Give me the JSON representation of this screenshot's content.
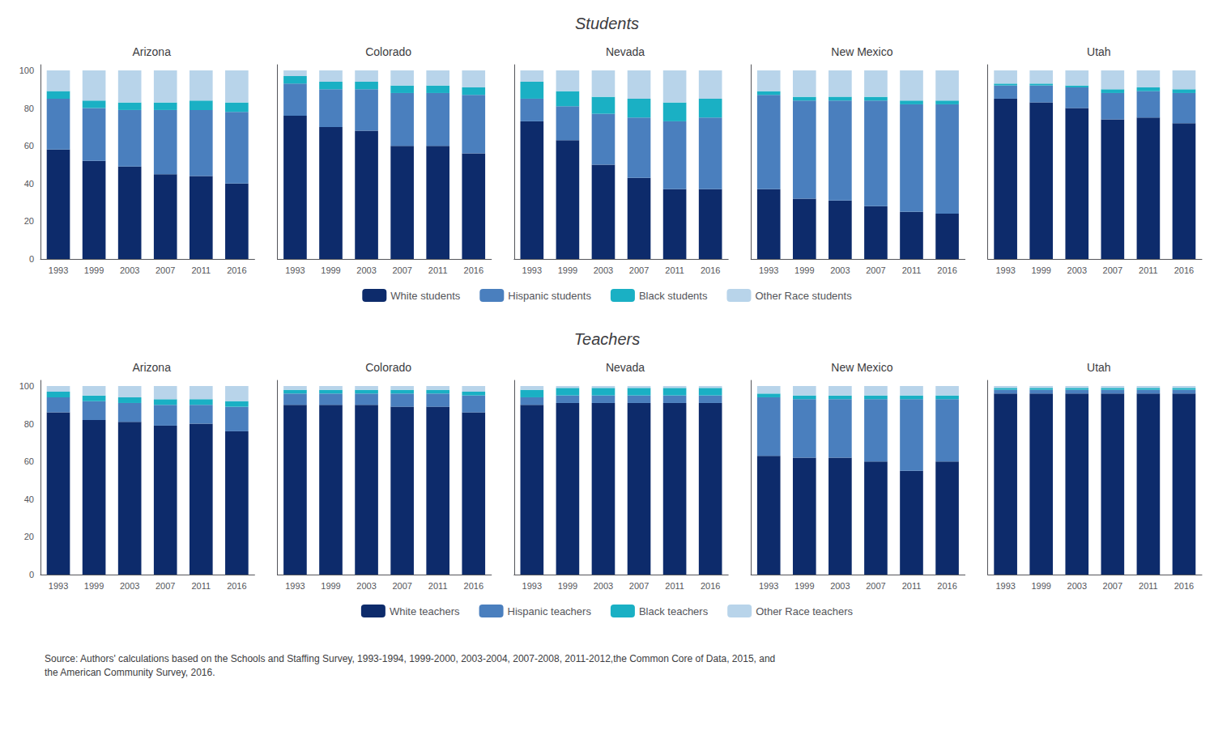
{
  "chart_data": [
    {
      "type": "bar",
      "title": "Arizona",
      "annotations": [
        "Students"
      ],
      "legend": "bottom",
      "stacked": true,
      "grid": false,
      "categories": [
        "1993",
        "1999",
        "2003",
        "2007",
        "2011",
        "2016"
      ],
      "ylim": [
        0,
        103
      ],
      "yticks": [
        0,
        20,
        40,
        60,
        80,
        100
      ],
      "series": [
        {
          "name": "White students",
          "color": "#0d2b6b",
          "values": [
            58,
            52,
            49,
            45,
            44,
            40
          ]
        },
        {
          "name": "Hispanic students",
          "color": "#4a7fbe",
          "values": [
            27,
            28,
            30,
            34,
            35,
            38
          ]
        },
        {
          "name": "Black students",
          "color": "#1ab0c4",
          "values": [
            4,
            4,
            4,
            4,
            5,
            5
          ]
        },
        {
          "name": "Other Race students",
          "color": "#b8d4ea",
          "values": [
            11,
            16,
            17,
            17,
            16,
            17
          ]
        }
      ]
    },
    {
      "type": "bar",
      "title": "Colorado",
      "stacked": true,
      "grid": false,
      "tick_labels": "x",
      "categories": [
        "1993",
        "1999",
        "2003",
        "2007",
        "2011",
        "2016"
      ],
      "ylim": [
        0,
        103
      ],
      "yticks": [
        0,
        20,
        40,
        60,
        80,
        100
      ],
      "series": [
        {
          "name": "White students",
          "color": "#0d2b6b",
          "values": [
            76,
            70,
            68,
            60,
            60,
            56
          ]
        },
        {
          "name": "Hispanic students",
          "color": "#4a7fbe",
          "values": [
            17,
            20,
            22,
            28,
            28,
            31
          ]
        },
        {
          "name": "Black students",
          "color": "#1ab0c4",
          "values": [
            4,
            4,
            4,
            4,
            4,
            4
          ]
        },
        {
          "name": "Other Race students",
          "color": "#b8d4ea",
          "values": [
            3,
            6,
            6,
            8,
            8,
            9
          ]
        }
      ]
    },
    {
      "type": "bar",
      "title": "Nevada",
      "stacked": true,
      "grid": false,
      "tick_labels": "x",
      "categories": [
        "1993",
        "1999",
        "2003",
        "2007",
        "2011",
        "2016"
      ],
      "ylim": [
        0,
        103
      ],
      "yticks": [
        0,
        20,
        40,
        60,
        80,
        100
      ],
      "series": [
        {
          "name": "White students",
          "color": "#0d2b6b",
          "values": [
            73,
            63,
            50,
            43,
            37,
            37
          ]
        },
        {
          "name": "Hispanic students",
          "color": "#4a7fbe",
          "values": [
            12,
            18,
            27,
            32,
            36,
            38
          ]
        },
        {
          "name": "Black students",
          "color": "#1ab0c4",
          "values": [
            9,
            8,
            9,
            10,
            10,
            10
          ]
        },
        {
          "name": "Other Race students",
          "color": "#b8d4ea",
          "values": [
            6,
            11,
            14,
            15,
            17,
            15
          ]
        }
      ]
    },
    {
      "type": "bar",
      "title": "New Mexico",
      "stacked": true,
      "grid": false,
      "tick_labels": "x",
      "categories": [
        "1993",
        "1999",
        "2003",
        "2007",
        "2011",
        "2016"
      ],
      "ylim": [
        0,
        103
      ],
      "yticks": [
        0,
        20,
        40,
        60,
        80,
        100
      ],
      "series": [
        {
          "name": "White students",
          "color": "#0d2b6b",
          "values": [
            37,
            32,
            31,
            28,
            25,
            24
          ]
        },
        {
          "name": "Hispanic students",
          "color": "#4a7fbe",
          "values": [
            50,
            52,
            53,
            56,
            57,
            58
          ]
        },
        {
          "name": "Black students",
          "color": "#1ab0c4",
          "values": [
            2,
            2,
            2,
            2,
            2,
            2
          ]
        },
        {
          "name": "Other Race students",
          "color": "#b8d4ea",
          "values": [
            11,
            14,
            14,
            14,
            16,
            16
          ]
        }
      ]
    },
    {
      "type": "bar",
      "title": "Utah",
      "stacked": true,
      "grid": false,
      "tick_labels": "x",
      "categories": [
        "1993",
        "1999",
        "2003",
        "2007",
        "2011",
        "2016"
      ],
      "ylim": [
        0,
        103
      ],
      "yticks": [
        0,
        20,
        40,
        60,
        80,
        100
      ],
      "series": [
        {
          "name": "White students",
          "color": "#0d2b6b",
          "values": [
            85,
            83,
            80,
            74,
            75,
            72
          ]
        },
        {
          "name": "Hispanic students",
          "color": "#4a7fbe",
          "values": [
            7,
            9,
            11,
            14,
            14,
            16
          ]
        },
        {
          "name": "Black students",
          "color": "#1ab0c4",
          "values": [
            1,
            1,
            1,
            2,
            2,
            2
          ]
        },
        {
          "name": "Other Race students",
          "color": "#b8d4ea",
          "values": [
            7,
            7,
            8,
            10,
            9,
            10
          ]
        }
      ]
    },
    {
      "type": "bar",
      "title": "Arizona",
      "annotations": [
        "Teachers",
        "Source: Authors' calculations based on the Schools and Staffing Survey, 1993-1994, 1999-2000, 2003-2004, 2007-2008, 2011-2012,the Common Core of Data, 2015, and\nthe American Community Survey, 2016."
      ],
      "legend": "bottom",
      "stacked": true,
      "grid": false,
      "categories": [
        "1993",
        "1999",
        "2003",
        "2007",
        "2011",
        "2016"
      ],
      "ylim": [
        0,
        103
      ],
      "yticks": [
        0,
        20,
        40,
        60,
        80,
        100
      ],
      "series": [
        {
          "name": "White teachers",
          "color": "#0d2b6b",
          "values": [
            86,
            82,
            81,
            79,
            80,
            76
          ]
        },
        {
          "name": "Hispanic teachers",
          "color": "#4a7fbe",
          "values": [
            8,
            10,
            10,
            11,
            10,
            13
          ]
        },
        {
          "name": "Black teachers",
          "color": "#1ab0c4",
          "values": [
            3,
            3,
            3,
            3,
            3,
            3
          ]
        },
        {
          "name": "Other Race teachers",
          "color": "#b8d4ea",
          "values": [
            3,
            5,
            6,
            7,
            7,
            8
          ]
        }
      ]
    },
    {
      "type": "bar",
      "title": "Colorado",
      "stacked": true,
      "grid": false,
      "tick_labels": "x",
      "categories": [
        "1993",
        "1999",
        "2003",
        "2007",
        "2011",
        "2016"
      ],
      "ylim": [
        0,
        103
      ],
      "yticks": [
        0,
        20,
        40,
        60,
        80,
        100
      ],
      "series": [
        {
          "name": "White teachers",
          "color": "#0d2b6b",
          "values": [
            90,
            90,
            90,
            89,
            89,
            86
          ]
        },
        {
          "name": "Hispanic teachers",
          "color": "#4a7fbe",
          "values": [
            6,
            6,
            6,
            7,
            7,
            9
          ]
        },
        {
          "name": "Black teachers",
          "color": "#1ab0c4",
          "values": [
            2,
            2,
            2,
            2,
            2,
            2
          ]
        },
        {
          "name": "Other Race teachers",
          "color": "#b8d4ea",
          "values": [
            2,
            2,
            2,
            2,
            2,
            3
          ]
        }
      ]
    },
    {
      "type": "bar",
      "title": "Nevada",
      "stacked": true,
      "grid": false,
      "tick_labels": "x",
      "categories": [
        "1993",
        "1999",
        "2003",
        "2007",
        "2011",
        "2016"
      ],
      "ylim": [
        0,
        103
      ],
      "yticks": [
        0,
        20,
        40,
        60,
        80,
        100
      ],
      "series": [
        {
          "name": "White teachers",
          "color": "#0d2b6b",
          "values": [
            90,
            91,
            91,
            91,
            91,
            91
          ]
        },
        {
          "name": "Hispanic teachers",
          "color": "#4a7fbe",
          "values": [
            4,
            4,
            4,
            4,
            4,
            4
          ]
        },
        {
          "name": "Black teachers",
          "color": "#1ab0c4",
          "values": [
            4,
            4,
            4,
            4,
            4,
            4
          ]
        },
        {
          "name": "Other Race teachers",
          "color": "#b8d4ea",
          "values": [
            2,
            1,
            1,
            1,
            1,
            1
          ]
        }
      ]
    },
    {
      "type": "bar",
      "title": "New Mexico",
      "stacked": true,
      "grid": false,
      "tick_labels": "x",
      "categories": [
        "1993",
        "1999",
        "2003",
        "2007",
        "2011",
        "2016"
      ],
      "ylim": [
        0,
        103
      ],
      "yticks": [
        0,
        20,
        40,
        60,
        80,
        100
      ],
      "series": [
        {
          "name": "White teachers",
          "color": "#0d2b6b",
          "values": [
            63,
            62,
            62,
            60,
            55,
            60
          ]
        },
        {
          "name": "Hispanic teachers",
          "color": "#4a7fbe",
          "values": [
            31,
            31,
            31,
            33,
            38,
            33
          ]
        },
        {
          "name": "Black teachers",
          "color": "#1ab0c4",
          "values": [
            2,
            2,
            2,
            2,
            2,
            2
          ]
        },
        {
          "name": "Other Race teachers",
          "color": "#b8d4ea",
          "values": [
            4,
            5,
            5,
            5,
            5,
            5
          ]
        }
      ]
    },
    {
      "type": "bar",
      "title": "Utah",
      "stacked": true,
      "grid": false,
      "tick_labels": "x",
      "categories": [
        "1993",
        "1999",
        "2003",
        "2007",
        "2011",
        "2016"
      ],
      "ylim": [
        0,
        103
      ],
      "yticks": [
        0,
        20,
        40,
        60,
        80,
        100
      ],
      "series": [
        {
          "name": "White teachers",
          "color": "#0d2b6b",
          "values": [
            96,
            96,
            96,
            96,
            96,
            96
          ]
        },
        {
          "name": "Hispanic teachers",
          "color": "#4a7fbe",
          "values": [
            2,
            2,
            2,
            2,
            2,
            2
          ]
        },
        {
          "name": "Black teachers",
          "color": "#1ab0c4",
          "values": [
            1,
            1,
            1,
            1,
            1,
            1
          ]
        },
        {
          "name": "Other Race teachers",
          "color": "#b8d4ea",
          "values": [
            1,
            1,
            1,
            1,
            1,
            1
          ]
        }
      ]
    }
  ]
}
